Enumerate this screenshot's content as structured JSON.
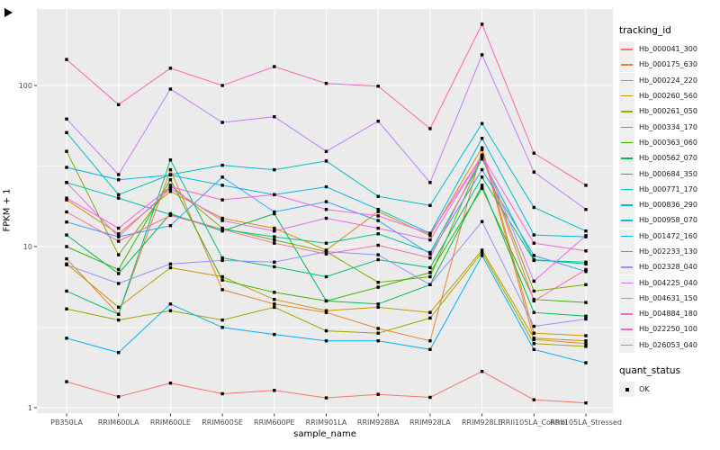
{
  "chart_data": {
    "type": "line",
    "xlabel": "sample_name",
    "ylabel": "FPKM + 1",
    "yscale": "log10",
    "yticks": [
      1,
      10,
      100
    ],
    "grid": "on",
    "legend_position": "right",
    "legend_title": "tracking_id",
    "legend2_title": "quant_status",
    "legend2_items": [
      {
        "label": "OK",
        "marker": "black-square"
      }
    ],
    "panel_bg": "#EBEBEB",
    "grid_color": "#FFFFFF",
    "point_color": "#000000",
    "axis_text_color": "#4D4D4D",
    "categories": [
      "PB350LA",
      "RRIM600LA",
      "RRIM600LE",
      "RRIM600SE",
      "RRIM600PE",
      "RRIM901LA",
      "RRIM928BA",
      "RRIM928LA",
      "RRIM928LE",
      "RRII105LA_Control",
      "RRII105LA_Stressed"
    ],
    "series": [
      {
        "name": "Hb_000041_300",
        "color": "#F8766D",
        "values": [
          1.45,
          1.17,
          1.42,
          1.22,
          1.28,
          1.15,
          1.21,
          1.16,
          1.68,
          1.12,
          1.07
        ]
      },
      {
        "name": "Hb_000175_630",
        "color": "#EA8331",
        "values": [
          8.4,
          3.8,
          30,
          5.4,
          4.4,
          3.9,
          3.1,
          2.6,
          40,
          2.65,
          2.5
        ]
      },
      {
        "name": "Hb_000224_220",
        "color": "#D89000",
        "values": [
          19.5,
          12,
          22,
          15,
          13,
          9.5,
          16.5,
          11.7,
          41,
          2.9,
          2.8
        ]
      },
      {
        "name": "Hb_000260_560",
        "color": "#C09B00",
        "values": [
          7.8,
          4.2,
          7.4,
          6.5,
          4.7,
          4.0,
          4.2,
          3.9,
          9.5,
          2.7,
          2.6
        ]
      },
      {
        "name": "Hb_000261_050",
        "color": "#A3A500",
        "values": [
          4.1,
          3.5,
          4.0,
          3.5,
          4.2,
          3.0,
          2.9,
          3.6,
          9.2,
          2.5,
          2.4
        ]
      },
      {
        "name": "Hb_000334_170",
        "color": "#7CAE00",
        "values": [
          39,
          8.9,
          24,
          13,
          11,
          9.3,
          6.0,
          6.5,
          36,
          5.3,
          5.8
        ]
      },
      {
        "name": "Hb_000363_060",
        "color": "#39B600",
        "values": [
          10,
          7.2,
          26,
          6.2,
          5.2,
          4.6,
          5.6,
          6.9,
          23,
          4.7,
          4.5
        ]
      },
      {
        "name": "Hb_000562_070",
        "color": "#00BB4E",
        "values": [
          11.8,
          6.8,
          16,
          12.5,
          16,
          4.6,
          4.4,
          5.8,
          24,
          3.9,
          3.7
        ]
      },
      {
        "name": "Hb_000684_350",
        "color": "#00BF7D",
        "values": [
          5.3,
          3.8,
          34.5,
          8.5,
          7.5,
          6.5,
          8.3,
          7.4,
          27,
          8.2,
          8.0
        ]
      },
      {
        "name": "Hb_000771_170",
        "color": "#00C1A3",
        "values": [
          25,
          20,
          15.8,
          12.8,
          11.5,
          10.5,
          12.0,
          9.2,
          35,
          8.3,
          7.8
        ]
      },
      {
        "name": "Hb_000836_290",
        "color": "#00BFC4",
        "values": [
          51,
          21,
          28,
          32,
          30,
          34,
          20.5,
          18,
          58,
          17.5,
          12.5
        ]
      },
      {
        "name": "Hb_000958_070",
        "color": "#00BAE0",
        "values": [
          31,
          26,
          27.8,
          24,
          21,
          23.5,
          17,
          12.1,
          47,
          11.8,
          11.5
        ]
      },
      {
        "name": "Hb_001472_160",
        "color": "#00B0F6",
        "values": [
          2.7,
          2.2,
          4.4,
          3.15,
          2.85,
          2.6,
          2.6,
          2.3,
          8.8,
          2.3,
          1.9
        ]
      },
      {
        "name": "Hb_002233_130",
        "color": "#35A2FF",
        "values": [
          14.2,
          11.5,
          13.5,
          27,
          16.4,
          19,
          14.5,
          9.0,
          30,
          8.8,
          7.0
        ]
      },
      {
        "name": "Hb_002328_040",
        "color": "#9590FF",
        "values": [
          7.7,
          5.9,
          7.8,
          8.2,
          8.0,
          9.3,
          8.9,
          5.8,
          14.3,
          3.2,
          3.55
        ]
      },
      {
        "name": "Hb_004225_040",
        "color": "#C77CFF",
        "values": [
          62,
          28,
          95,
          59,
          64,
          39,
          60,
          25,
          155,
          29,
          17
        ]
      },
      {
        "name": "Hb_004631_150",
        "color": "#E76BF3",
        "values": [
          25,
          11.5,
          23,
          14.5,
          12.5,
          15,
          13,
          11,
          37,
          6.1,
          11.7
        ]
      },
      {
        "name": "Hb_004884_180",
        "color": "#FA62DB",
        "values": [
          20,
          13,
          23.5,
          19.5,
          21,
          17,
          15.5,
          12,
          36.5,
          10.5,
          9.4
        ]
      },
      {
        "name": "Hb_022250_100",
        "color": "#FF62BC",
        "values": [
          145,
          76,
          128,
          100,
          131,
          103,
          99,
          54,
          240,
          38,
          24
        ]
      },
      {
        "name": "Hb_026053_040",
        "color": "#FF6A98",
        "values": [
          16.4,
          10.8,
          15.6,
          12.8,
          10.5,
          9.0,
          10.2,
          8.5,
          37,
          4.6,
          7.2
        ]
      }
    ]
  }
}
